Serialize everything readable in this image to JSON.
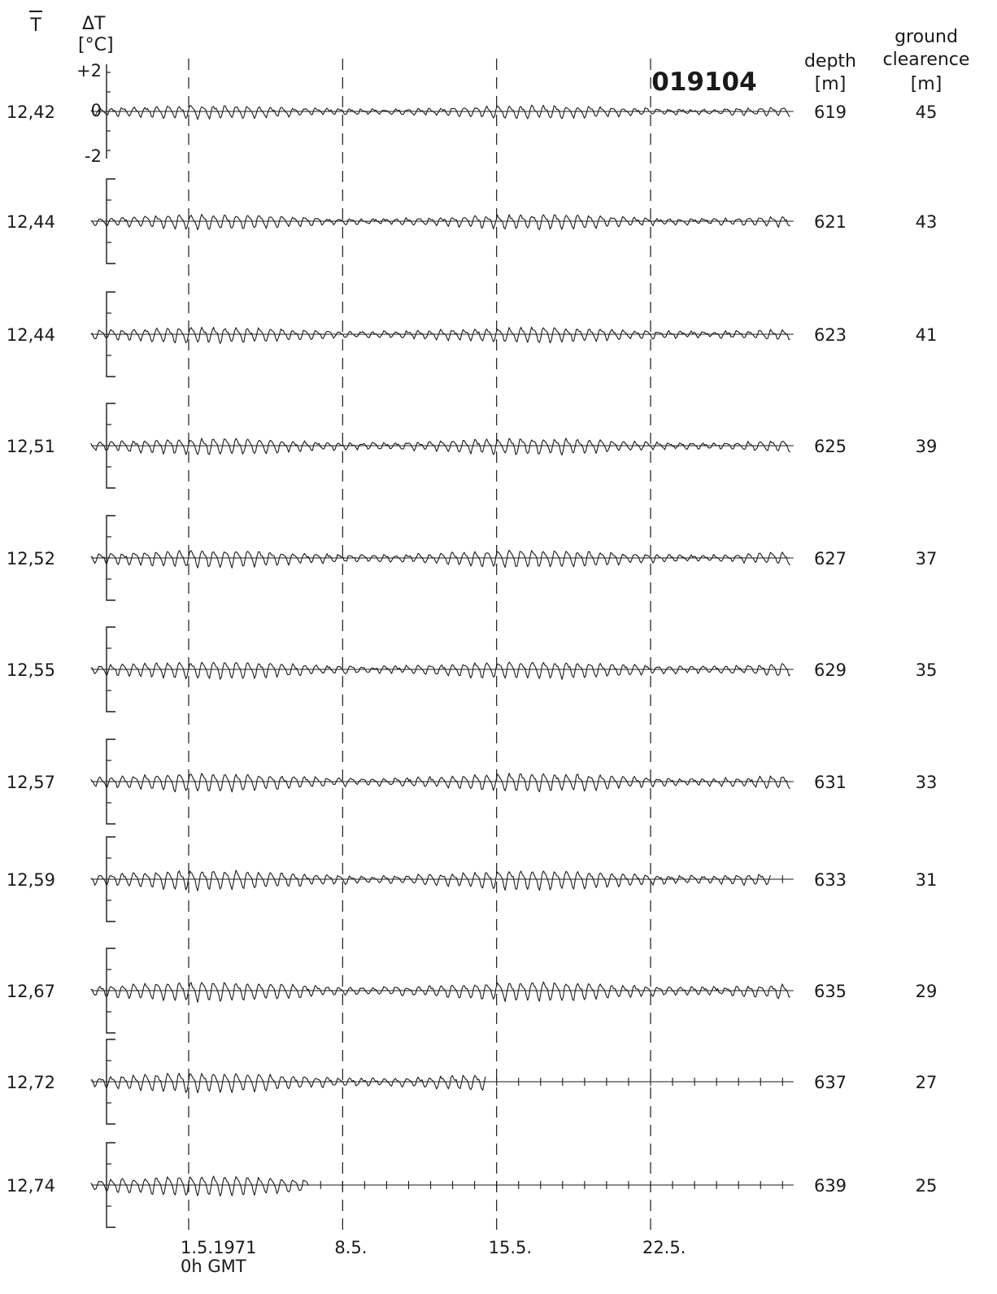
{
  "chart_data": {
    "type": "line",
    "figure_id": "019104",
    "headers": {
      "tbar": "T",
      "delta_t": "ΔT",
      "delta_t_unit": "[°C]",
      "depth": "depth",
      "depth_unit": "[m]",
      "clearance_line1": "ground",
      "clearance_line2": "clearence",
      "clearance_unit": "[m]"
    },
    "scale": {
      "top": "+2",
      "zero": "0",
      "bottom": "-2"
    },
    "ylim": [
      -2,
      2
    ],
    "xlim": [
      -4.5,
      27.5
    ],
    "x_unit": "days since 1.5.1971 0h GMT",
    "x_ticks": [
      {
        "x": 0,
        "label": "1.5.1971",
        "sublabel": "0h GMT"
      },
      {
        "x": 7,
        "label": "8.5."
      },
      {
        "x": 14,
        "label": "15.5."
      },
      {
        "x": 21,
        "label": "22.5."
      }
    ],
    "series": [
      {
        "tbar": "12,42",
        "depth": "619",
        "clearance": "45",
        "amplitude": 0.25,
        "end_day": 27.4
      },
      {
        "tbar": "12,44",
        "depth": "621",
        "clearance": "43",
        "amplitude": 0.28,
        "end_day": 27.4
      },
      {
        "tbar": "12,44",
        "depth": "623",
        "clearance": "41",
        "amplitude": 0.3,
        "end_day": 27.4
      },
      {
        "tbar": "12,51",
        "depth": "625",
        "clearance": "39",
        "amplitude": 0.32,
        "end_day": 27.4
      },
      {
        "tbar": "12,52",
        "depth": "627",
        "clearance": "37",
        "amplitude": 0.34,
        "end_day": 27.4
      },
      {
        "tbar": "12,55",
        "depth": "629",
        "clearance": "35",
        "amplitude": 0.34,
        "end_day": 27.4
      },
      {
        "tbar": "12,57",
        "depth": "631",
        "clearance": "33",
        "amplitude": 0.36,
        "end_day": 27.4
      },
      {
        "tbar": "12,59",
        "depth": "633",
        "clearance": "31",
        "amplitude": 0.38,
        "end_day": 26.5
      },
      {
        "tbar": "12,67",
        "depth": "635",
        "clearance": "29",
        "amplitude": 0.38,
        "end_day": 27.4
      },
      {
        "tbar": "12,72",
        "depth": "637",
        "clearance": "27",
        "amplitude": 0.38,
        "end_day": 13.5
      },
      {
        "tbar": "12,74",
        "depth": "639",
        "clearance": "25",
        "amplitude": 0.4,
        "end_day": 5.5
      }
    ]
  }
}
